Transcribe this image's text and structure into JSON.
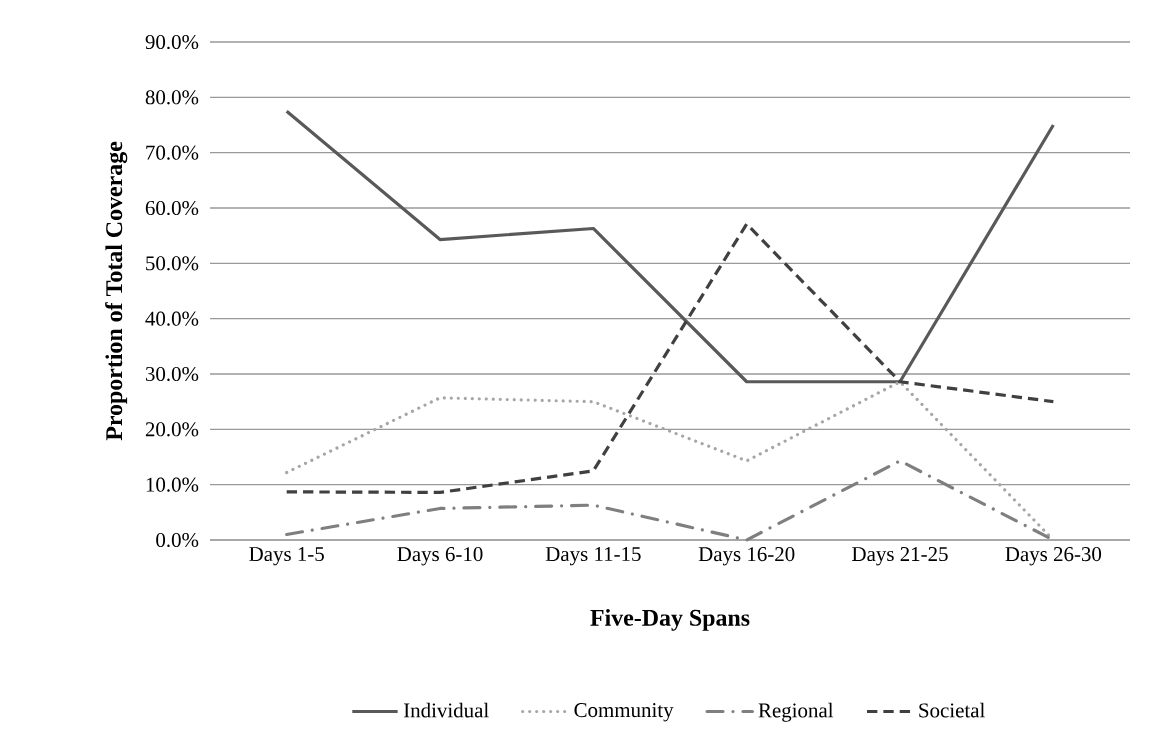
{
  "chart_data": {
    "type": "line",
    "xlabel": "Five-Day Spans",
    "ylabel": "Proportion of Total Coverage",
    "categories": [
      "Days 1-5",
      "Days 6-10",
      "Days 11-15",
      "Days 16-20",
      "Days 21-25",
      "Days 26-30"
    ],
    "series": [
      {
        "name": "Individual",
        "color": "#595959",
        "line_style": "solid",
        "values": [
          77.5,
          54.3,
          56.3,
          28.6,
          28.6,
          75.0
        ]
      },
      {
        "name": "Community",
        "color": "#a6a6a6",
        "line_style": "dotted",
        "values": [
          12.2,
          25.7,
          25.0,
          14.3,
          28.6,
          0.0
        ]
      },
      {
        "name": "Regional",
        "color": "#7f7f7f",
        "line_style": "dashdot",
        "values": [
          1.0,
          5.7,
          6.3,
          0.0,
          14.3,
          0.0
        ]
      },
      {
        "name": "Societal",
        "color": "#404040",
        "line_style": "dashed",
        "values": [
          8.7,
          8.6,
          12.5,
          57.1,
          28.6,
          25.0
        ]
      }
    ],
    "ylim": [
      0,
      90
    ],
    "yticks": [
      {
        "value": 0,
        "label": "0.0%"
      },
      {
        "value": 10,
        "label": "10.0%"
      },
      {
        "value": 20,
        "label": "20.0%"
      },
      {
        "value": 30,
        "label": "30.0%"
      },
      {
        "value": 40,
        "label": "40.0%"
      },
      {
        "value": 50,
        "label": "50.0%"
      },
      {
        "value": 60,
        "label": "60.0%"
      },
      {
        "value": 70,
        "label": "70.0%"
      },
      {
        "value": 80,
        "label": "80.0%"
      },
      {
        "value": 90,
        "label": "90.0%"
      }
    ],
    "grid": "y",
    "legend": "bottom",
    "marker": "none"
  }
}
